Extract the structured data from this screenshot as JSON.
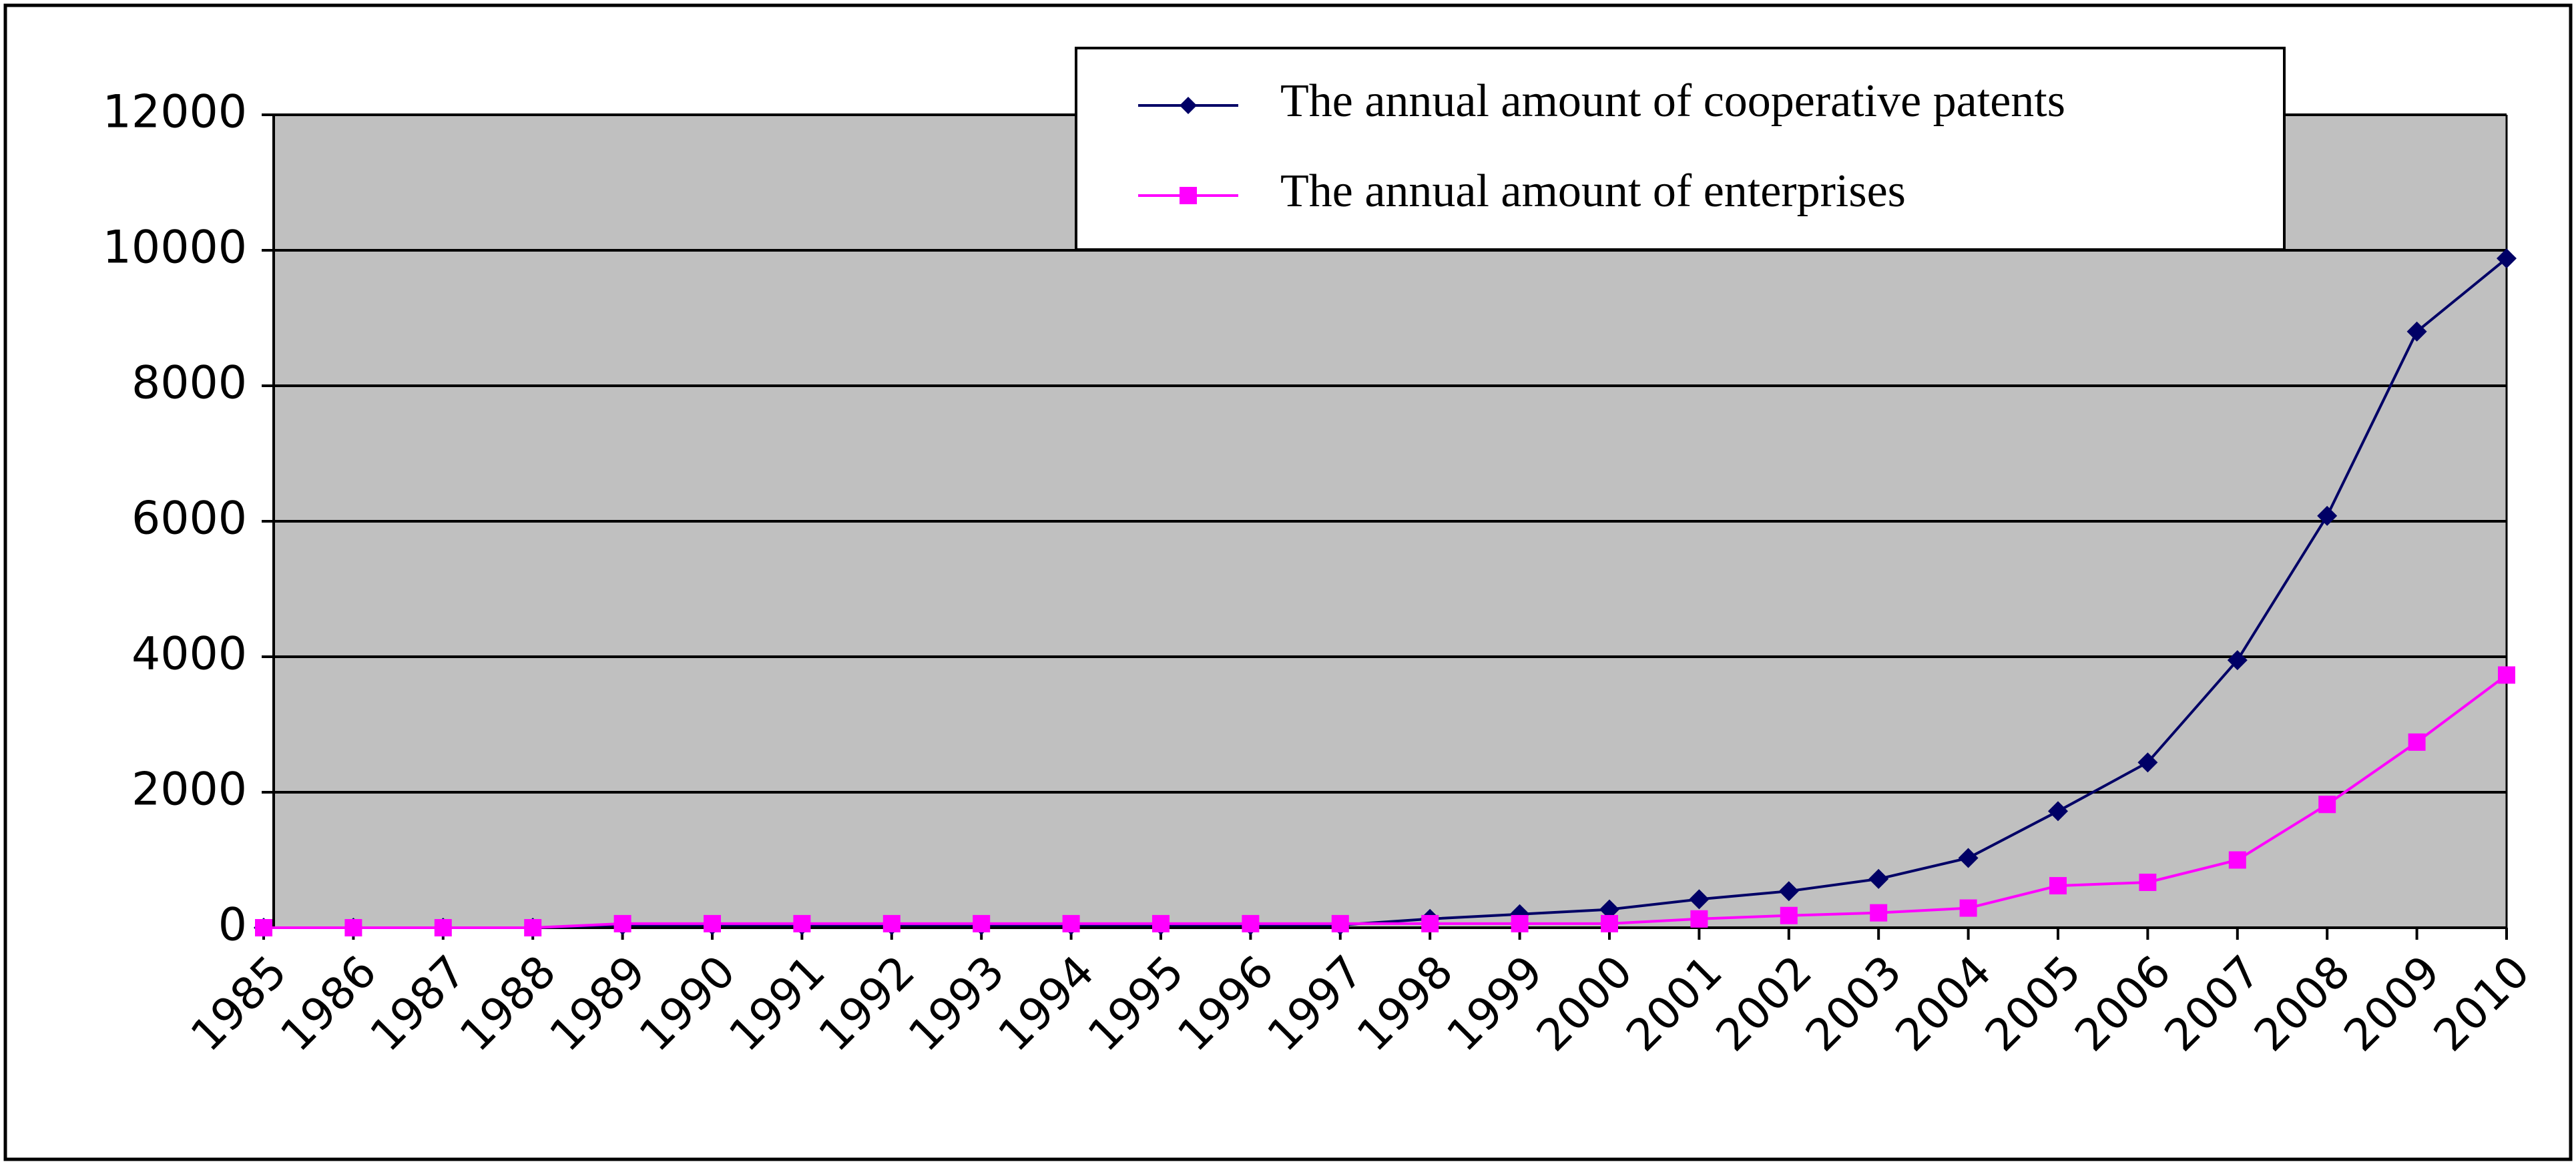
{
  "chart_data": {
    "type": "line",
    "title": "",
    "xlabel": "",
    "ylabel": "",
    "ylim": [
      0,
      12000
    ],
    "yticks": [
      "0",
      "2000",
      "4000",
      "6000",
      "8000",
      "10000",
      "12000"
    ],
    "categories": [
      "1985",
      "1986",
      "1987",
      "1988",
      "1989",
      "1990",
      "1991",
      "1992",
      "1993",
      "1994",
      "1995",
      "1996",
      "1997",
      "1998",
      "1999",
      "2000",
      "2001",
      "2002",
      "2003",
      "2004",
      "2005",
      "2006",
      "2007",
      "2008",
      "2009",
      "2010"
    ],
    "grid": true,
    "legend_position": "top-right",
    "series": [
      {
        "name": "The annual amount of cooperative patents",
        "color": "#000066",
        "marker": "diamond",
        "values": [
          0,
          0,
          0,
          0,
          40,
          40,
          40,
          40,
          40,
          40,
          40,
          40,
          40,
          130,
          200,
          270,
          420,
          540,
          720,
          1030,
          1720,
          2440,
          3950,
          6080,
          8800,
          9880
        ]
      },
      {
        "name": "The annual amount of enterprises",
        "color": "#ff00ff",
        "marker": "square",
        "values": [
          0,
          0,
          0,
          0,
          60,
          60,
          60,
          60,
          60,
          60,
          60,
          60,
          60,
          60,
          60,
          60,
          130,
          180,
          220,
          290,
          620,
          670,
          1000,
          1820,
          2740,
          3730
        ]
      }
    ],
    "colors": {
      "plot_background": "#c0c0c0",
      "grid": "#000000"
    }
  }
}
